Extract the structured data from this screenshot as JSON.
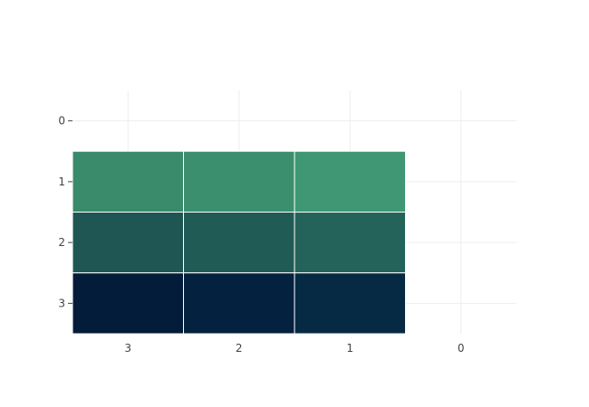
{
  "chart_data": {
    "type": "heatmap",
    "title": "",
    "xlabel": "",
    "ylabel": "",
    "x_categories": [
      "3",
      "2",
      "1",
      "0"
    ],
    "y_categories": [
      "0",
      "1",
      "2",
      "3"
    ],
    "cells": [
      {
        "x": "3",
        "y": "1",
        "color": "#3a8b6b"
      },
      {
        "x": "2",
        "y": "1",
        "color": "#3c8f6e"
      },
      {
        "x": "1",
        "y": "1",
        "color": "#3f9873"
      },
      {
        "x": "3",
        "y": "2",
        "color": "#1f5653"
      },
      {
        "x": "2",
        "y": "2",
        "color": "#205b56"
      },
      {
        "x": "1",
        "y": "2",
        "color": "#24635a"
      },
      {
        "x": "3",
        "y": "3",
        "color": "#031c3a"
      },
      {
        "x": "2",
        "y": "3",
        "color": "#04213f"
      },
      {
        "x": "1",
        "y": "3",
        "color": "#062a43"
      }
    ],
    "grid": true,
    "colors": {
      "grid": "#eeeeee",
      "tick_text": "#444444",
      "cell_border": "#ffffff"
    }
  }
}
